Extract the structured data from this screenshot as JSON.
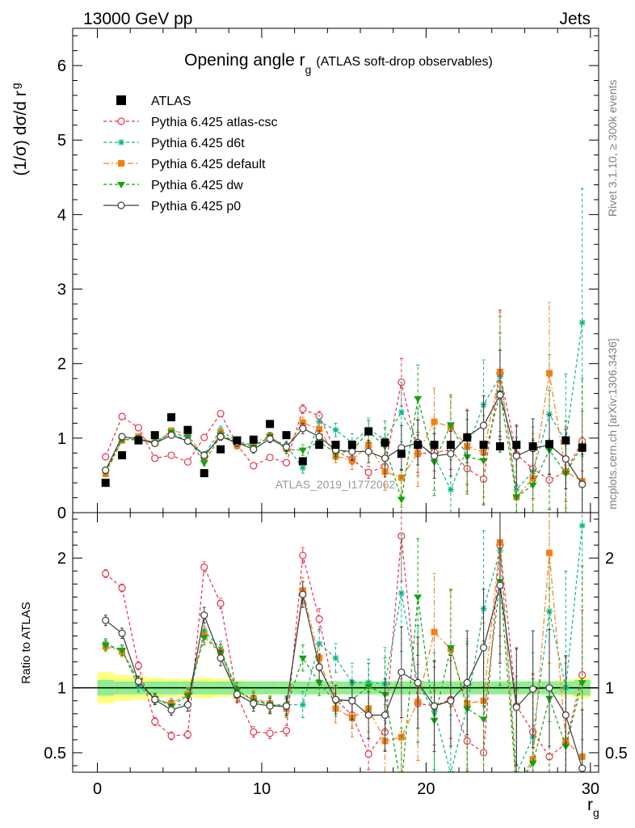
{
  "header": {
    "left": "13000 GeV pp",
    "right": "Jets"
  },
  "chart_data": {
    "type": "line",
    "title_main": "Opening angle r",
    "title_sub": "g",
    "title_rest": "(ATLAS soft-drop observables)",
    "ylabel_main": "(1/σ) dσ/d r",
    "ylabel_sub": "g",
    "ratio_ylabel": "Ratio to ATLAS",
    "xlabel_main": "r",
    "xlabel_sub": "g",
    "watermark": "ATLAS_2019_I1772062",
    "side_label_1": "Rivet 3.1.10, ≥ 300k events",
    "side_label_2": "mcplots.cern.ch [arXiv:1306.3436]",
    "xlim": [
      -1.5,
      30.5
    ],
    "ylim": [
      0,
      6.5
    ],
    "ratio_ylim": [
      0.35,
      2.35
    ],
    "x_ticks": [
      "0",
      "10",
      "20",
      "30"
    ],
    "y_ticks": [
      "0",
      "1",
      "2",
      "3",
      "4",
      "5",
      "6"
    ],
    "ratio_ticks": [
      "0.5",
      "1",
      "2"
    ],
    "x": [
      0.5,
      1.5,
      2.5,
      3.5,
      4.5,
      5.5,
      6.5,
      7.5,
      8.5,
      9.5,
      10.5,
      11.5,
      12.5,
      13.5,
      14.5,
      15.5,
      16.5,
      17.5,
      18.5,
      19.5,
      20.5,
      21.5,
      22.5,
      23.5,
      24.5,
      25.5,
      26.5,
      27.5,
      28.5,
      29.5
    ],
    "data": {
      "name": "ATLAS",
      "color": "#000000",
      "values": [
        0.4,
        0.77,
        0.97,
        1.04,
        1.28,
        1.11,
        0.53,
        0.85,
        0.97,
        0.98,
        1.19,
        1.04,
        0.69,
        0.91,
        0.91,
        0.91,
        1.09,
        0.94,
        0.79,
        0.91,
        0.91,
        0.91,
        1.01,
        0.91,
        0.89,
        0.91,
        0.89,
        0.92,
        0.97,
        0.87
      ],
      "err": [
        0.02,
        0.02,
        0.02,
        0.02,
        0.02,
        0.02,
        0.02,
        0.02,
        0.02,
        0.02,
        0.02,
        0.02,
        0.02,
        0.02,
        0.03,
        0.03,
        0.03,
        0.04,
        0.04,
        0.05,
        0.05,
        0.06,
        0.06,
        0.07,
        0.07,
        0.08,
        0.08,
        0.09,
        0.09,
        0.1
      ]
    },
    "band_inner": [
      0.06,
      0.05,
      0.05,
      0.05,
      0.05,
      0.05,
      0.05,
      0.05,
      0.05,
      0.05,
      0.05,
      0.05,
      0.05,
      0.05,
      0.05,
      0.05,
      0.05,
      0.05,
      0.05,
      0.05,
      0.05,
      0.05,
      0.05,
      0.05,
      0.05,
      0.05,
      0.05,
      0.05,
      0.05,
      0.06
    ],
    "band_outer": [
      0.12,
      0.1,
      0.09,
      0.08,
      0.07,
      0.07,
      0.08,
      0.07,
      0.06,
      0.05,
      0.04,
      0.04,
      0.04,
      0.04,
      0.03,
      0.03,
      0.03,
      0.03,
      0.03,
      0.03,
      0.03,
      0.03,
      0.03,
      0.03,
      0.04,
      0.04,
      0.05,
      0.05,
      0.06,
      0.08
    ],
    "series": [
      {
        "name": "Pythia 6.425 atlas-csc",
        "color": "#e8304a",
        "dash": "4,3",
        "marker": "circle-open",
        "values": [
          0.75,
          1.29,
          1.14,
          0.73,
          0.77,
          0.68,
          1.01,
          1.33,
          0.91,
          0.63,
          0.74,
          0.67,
          1.39,
          1.3,
          0.83,
          0.72,
          0.54,
          0.62,
          1.75,
          0.79,
          0.81,
          0.84,
          0.59,
          0.45,
          1.87,
          0.78,
          0.59,
          0.44,
          0.55,
          0.96
        ],
        "err": [
          0.02,
          0.02,
          0.02,
          0.02,
          0.02,
          0.02,
          0.03,
          0.03,
          0.03,
          0.03,
          0.03,
          0.03,
          0.06,
          0.06,
          0.07,
          0.07,
          0.08,
          0.1,
          0.32,
          0.25,
          0.25,
          0.26,
          0.3,
          0.33,
          0.85,
          0.4,
          0.4,
          0.4,
          0.4,
          0.4
        ]
      },
      {
        "name": "Pythia 6.425 d6t",
        "color": "#0bb58a",
        "dash": "4,3",
        "marker": "star",
        "values": [
          0.55,
          0.98,
          0.98,
          0.95,
          1.07,
          0.96,
          0.78,
          1.11,
          0.95,
          0.91,
          1.0,
          0.9,
          0.6,
          1.22,
          1.11,
          0.94,
          1.12,
          0.98,
          1.35,
          0.94,
          0.75,
          0.31,
          0.87,
          1.45,
          1.83,
          0.31,
          0.55,
          1.32,
          0.96,
          2.55
        ],
        "err": [
          0.02,
          0.03,
          0.03,
          0.03,
          0.03,
          0.04,
          0.04,
          0.05,
          0.05,
          0.05,
          0.05,
          0.06,
          0.07,
          0.08,
          0.09,
          0.12,
          0.15,
          0.25,
          0.4,
          0.45,
          0.45,
          0.4,
          0.5,
          0.6,
          0.8,
          0.7,
          0.6,
          0.8,
          0.9,
          1.8
        ]
      },
      {
        "name": "Pythia 6.425 default",
        "color": "#f57f17",
        "dash": "7,3,2,3",
        "marker": "square",
        "values": [
          0.52,
          0.97,
          1.02,
          0.93,
          1.1,
          1.06,
          0.73,
          1.07,
          0.9,
          0.93,
          1.03,
          0.86,
          1.21,
          1.12,
          0.76,
          0.7,
          0.91,
          0.55,
          0.47,
          0.8,
          1.22,
          1.15,
          0.89,
          0.81,
          1.89,
          0.21,
          0.46,
          1.87,
          0.55,
          0.42
        ],
        "err": [
          0.02,
          0.03,
          0.03,
          0.03,
          0.03,
          0.04,
          0.04,
          0.05,
          0.05,
          0.05,
          0.05,
          0.06,
          0.07,
          0.08,
          0.09,
          0.12,
          0.15,
          0.25,
          0.4,
          0.45,
          0.45,
          0.4,
          0.5,
          0.6,
          0.8,
          0.7,
          0.6,
          0.95,
          0.6,
          0.6
        ]
      },
      {
        "name": "Pythia 6.425 dw",
        "color": "#16a113",
        "dash": "4,3",
        "marker": "triangle-down",
        "values": [
          0.55,
          0.98,
          0.98,
          0.93,
          1.08,
          1.01,
          0.67,
          1.04,
          0.95,
          0.88,
          1.02,
          0.85,
          0.84,
          0.95,
          0.8,
          0.83,
          1.09,
          0.89,
          0.18,
          1.53,
          0.68,
          1.18,
          0.75,
          0.7,
          1.61,
          0.21,
          0.37,
          0.84,
          0.53,
          0.9
        ],
        "err": [
          0.02,
          0.03,
          0.03,
          0.03,
          0.03,
          0.04,
          0.04,
          0.05,
          0.05,
          0.05,
          0.05,
          0.06,
          0.07,
          0.08,
          0.09,
          0.12,
          0.15,
          0.25,
          0.4,
          0.45,
          0.45,
          0.4,
          0.5,
          0.6,
          0.8,
          0.7,
          0.6,
          0.8,
          0.7,
          0.9
        ]
      },
      {
        "name": "Pythia 6.425 p0",
        "color": "#3b3b3b",
        "dash": "",
        "marker": "circle-open",
        "values": [
          0.57,
          1.02,
          0.99,
          0.93,
          1.04,
          0.96,
          0.77,
          1.02,
          0.94,
          0.85,
          0.99,
          0.88,
          1.13,
          1.02,
          0.84,
          0.82,
          0.82,
          0.73,
          0.87,
          0.94,
          0.76,
          0.79,
          1.02,
          1.17,
          1.58,
          0.76,
          0.86,
          0.91,
          0.72,
          0.38
        ],
        "err": [
          0.02,
          0.03,
          0.03,
          0.03,
          0.03,
          0.04,
          0.04,
          0.05,
          0.05,
          0.05,
          0.05,
          0.06,
          0.07,
          0.08,
          0.09,
          0.12,
          0.15,
          0.25,
          0.3,
          0.3,
          0.3,
          0.3,
          0.35,
          0.4,
          0.6,
          0.4,
          0.4,
          0.4,
          0.4,
          0.4
        ]
      }
    ],
    "ratio_series": [
      [
        1.88,
        1.77,
        1.17,
        0.74,
        0.63,
        0.64,
        1.93,
        1.65,
        0.94,
        0.66,
        0.65,
        0.67,
        2.02,
        1.53,
        0.91,
        0.79,
        0.49,
        0.66,
        2.17,
        0.88,
        0.86,
        0.91,
        0.59,
        0.5,
        2.1,
        0.86,
        0.66,
        0.47,
        0.57,
        1.1
      ],
      [
        1.34,
        1.29,
        1.01,
        0.92,
        0.87,
        0.87,
        1.44,
        1.3,
        0.98,
        0.91,
        0.87,
        0.87,
        0.87,
        1.34,
        1.23,
        1.04,
        1.04,
        1.03,
        1.73,
        1.03,
        0.82,
        0.34,
        0.86,
        1.61,
        2.06,
        0.34,
        0.62,
        1.59,
        1.0,
        2.25
      ],
      [
        1.32,
        1.28,
        1.05,
        0.91,
        0.88,
        0.95,
        1.41,
        1.28,
        0.94,
        0.92,
        0.88,
        0.84,
        1.75,
        1.23,
        0.84,
        0.77,
        0.84,
        0.59,
        0.62,
        0.89,
        1.43,
        1.3,
        0.88,
        0.9,
        2.12,
        0.24,
        0.45,
        2.04,
        0.59,
        0.47
      ],
      [
        1.33,
        1.29,
        1.05,
        0.92,
        0.86,
        0.94,
        1.39,
        1.27,
        0.98,
        0.9,
        0.87,
        0.85,
        1.23,
        1.04,
        0.89,
        0.91,
        1.01,
        0.95,
        0.24,
        1.7,
        0.75,
        1.31,
        0.84,
        0.76,
        1.82,
        0.24,
        0.42,
        0.92,
        0.55,
        1.04
      ],
      [
        1.52,
        1.42,
        1.05,
        0.91,
        0.83,
        0.87,
        1.56,
        1.23,
        0.95,
        0.88,
        0.86,
        0.86,
        1.72,
        1.16,
        0.91,
        0.9,
        0.79,
        0.79,
        1.12,
        1.04,
        0.86,
        0.9,
        1.04,
        1.31,
        1.79,
        0.85,
        0.99,
        1.0,
        0.79,
        0.38
      ]
    ],
    "ratio_err": [
      [
        0.03,
        0.03,
        0.03,
        0.03,
        0.03,
        0.03,
        0.04,
        0.04,
        0.04,
        0.04,
        0.04,
        0.04,
        0.06,
        0.08,
        0.09,
        0.1,
        0.12,
        0.14,
        0.35,
        0.3,
        0.3,
        0.3,
        0.3,
        0.4,
        0.7,
        0.45,
        0.45,
        0.45,
        0.45,
        0.5
      ],
      [
        0.04,
        0.04,
        0.04,
        0.04,
        0.04,
        0.05,
        0.06,
        0.06,
        0.06,
        0.06,
        0.06,
        0.07,
        0.1,
        0.1,
        0.11,
        0.15,
        0.18,
        0.28,
        0.45,
        0.45,
        0.45,
        0.45,
        0.5,
        0.6,
        0.8,
        0.75,
        0.65,
        0.85,
        0.9,
        1.2
      ],
      [
        0.04,
        0.04,
        0.04,
        0.04,
        0.04,
        0.05,
        0.06,
        0.06,
        0.06,
        0.06,
        0.06,
        0.07,
        0.1,
        0.1,
        0.11,
        0.15,
        0.18,
        0.28,
        0.45,
        0.45,
        0.45,
        0.45,
        0.5,
        0.6,
        0.8,
        0.75,
        0.65,
        0.85,
        0.6,
        0.6
      ],
      [
        0.04,
        0.04,
        0.04,
        0.04,
        0.04,
        0.05,
        0.06,
        0.06,
        0.06,
        0.06,
        0.06,
        0.07,
        0.1,
        0.1,
        0.11,
        0.15,
        0.18,
        0.28,
        0.45,
        0.45,
        0.45,
        0.45,
        0.5,
        0.6,
        0.8,
        0.75,
        0.65,
        0.85,
        0.7,
        0.9
      ],
      [
        0.04,
        0.04,
        0.04,
        0.04,
        0.04,
        0.05,
        0.06,
        0.06,
        0.06,
        0.06,
        0.06,
        0.07,
        0.1,
        0.1,
        0.11,
        0.15,
        0.18,
        0.28,
        0.35,
        0.35,
        0.35,
        0.35,
        0.4,
        0.45,
        0.6,
        0.45,
        0.45,
        0.45,
        0.45,
        0.45
      ]
    ]
  }
}
